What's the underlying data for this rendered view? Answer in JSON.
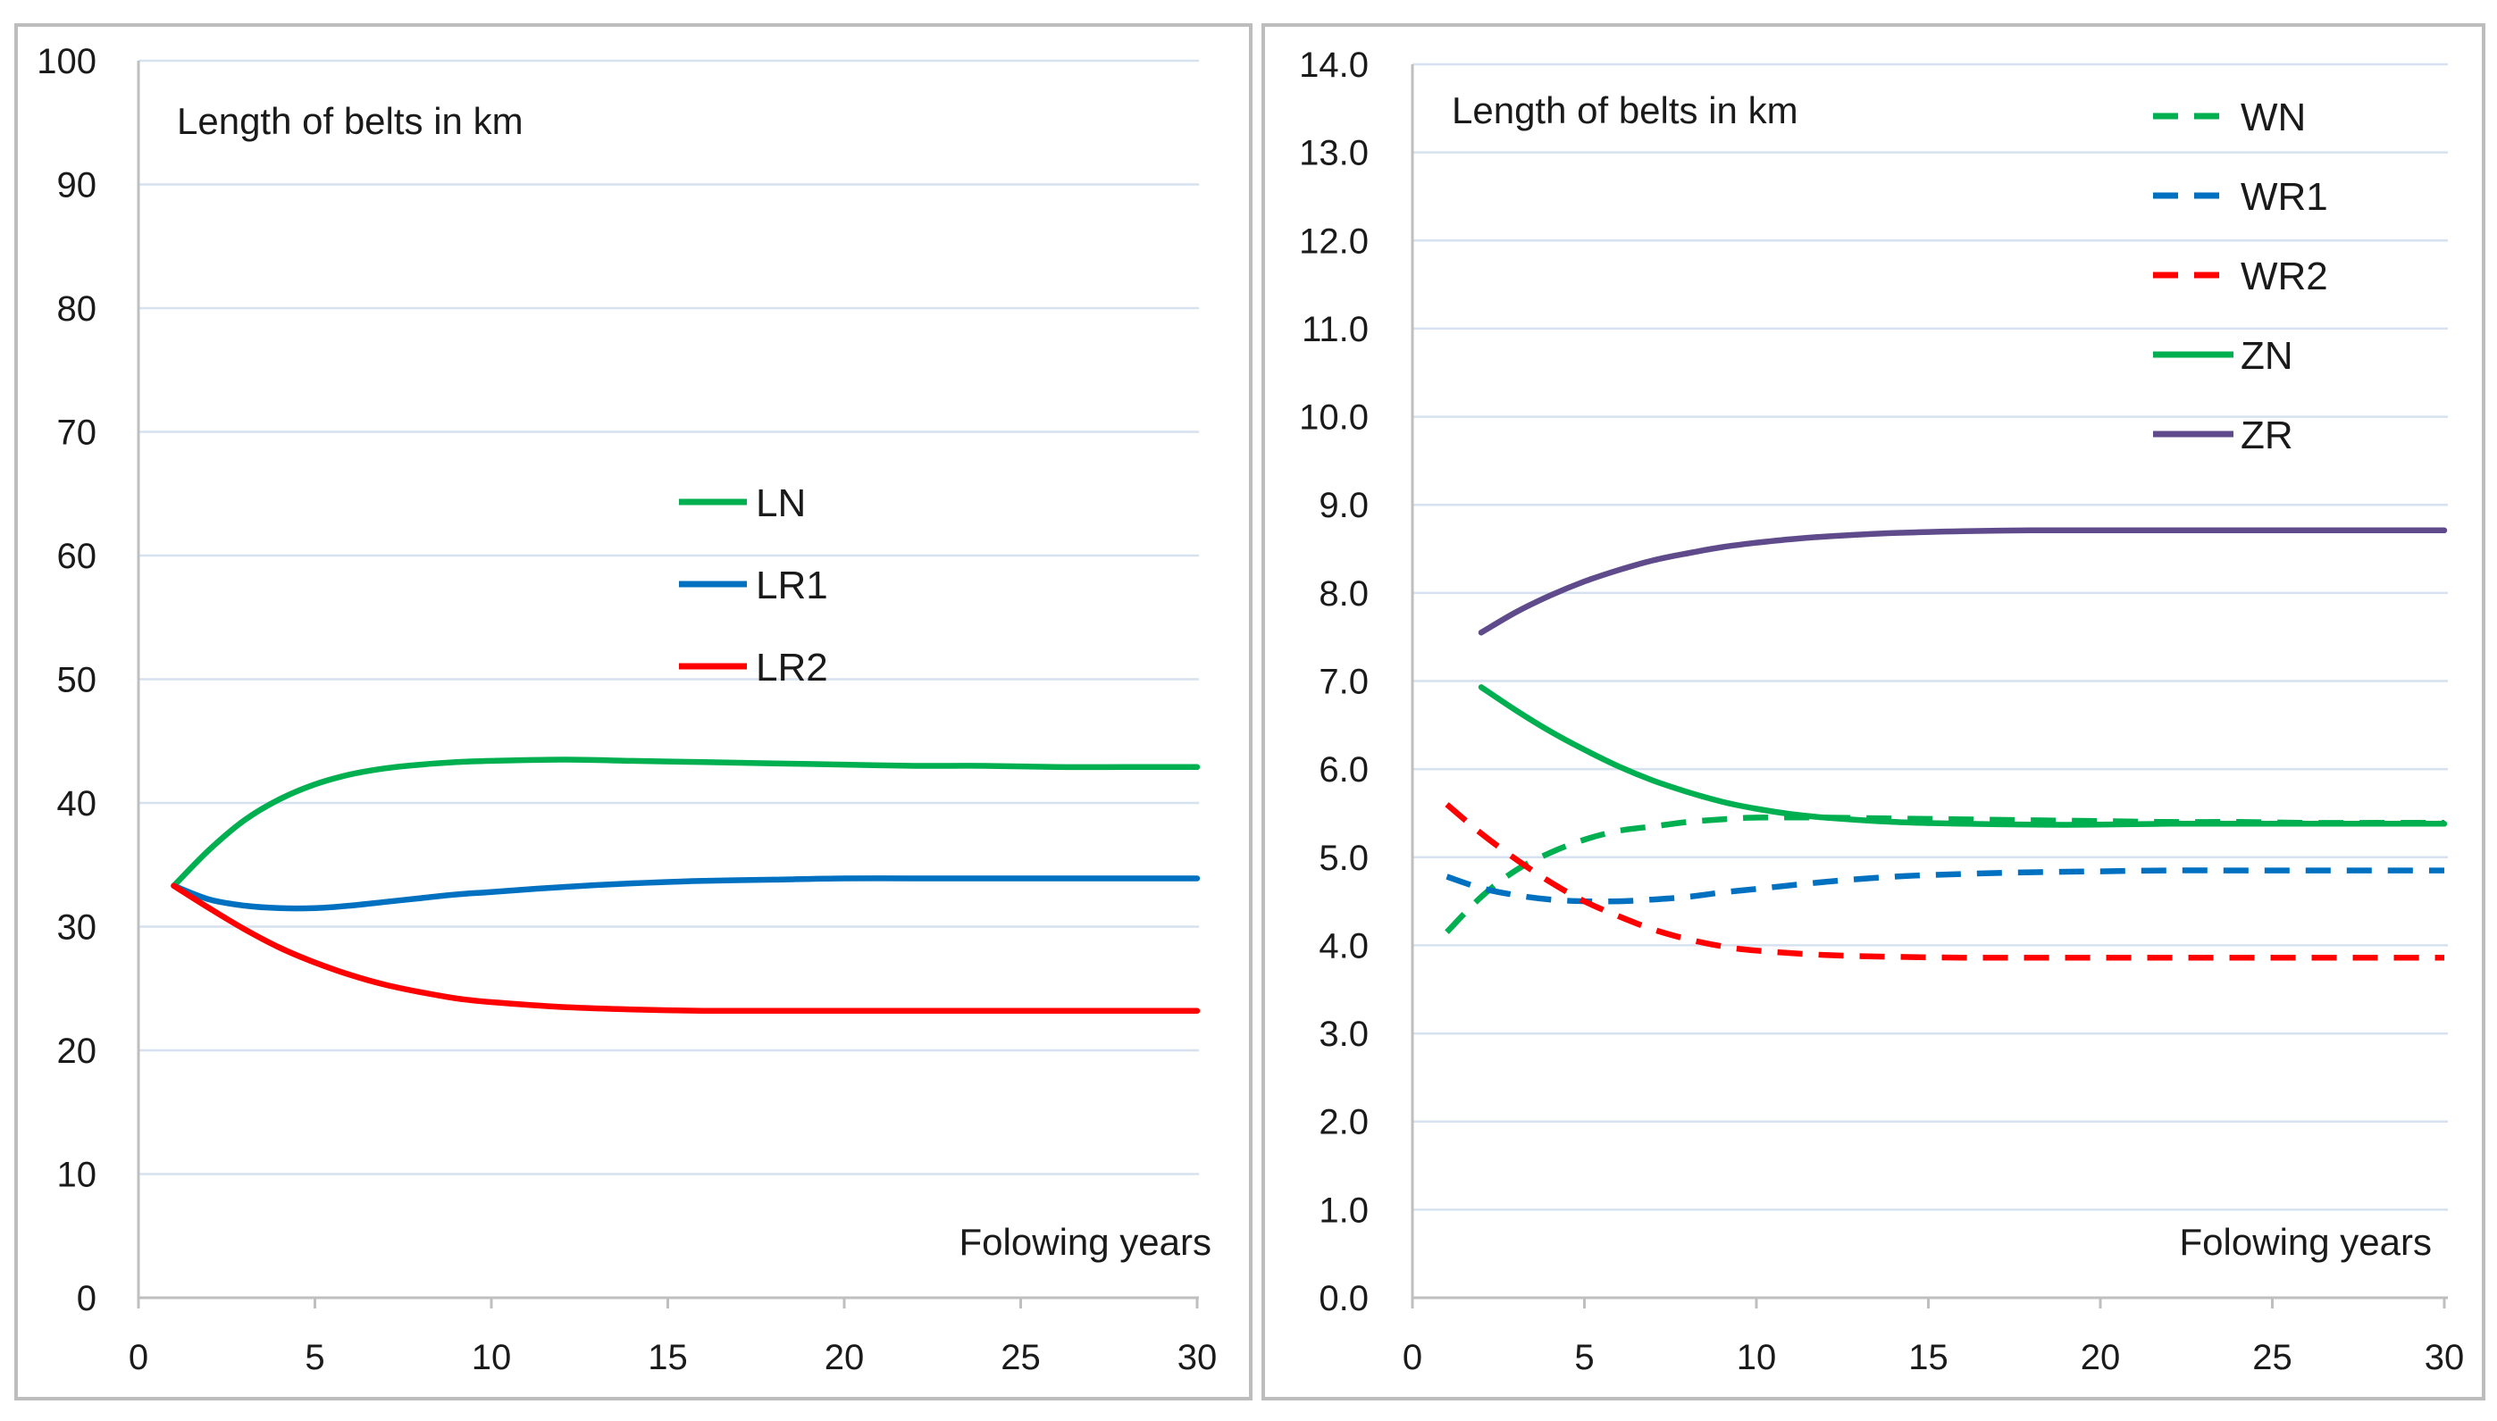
{
  "chart_data": [
    {
      "type": "line",
      "title": "Length of belts in km",
      "xlabel": "Folowing years",
      "ylabel": "",
      "xlim": [
        0,
        30
      ],
      "ylim": [
        0,
        100
      ],
      "x_ticks": [
        0,
        5,
        10,
        15,
        20,
        25,
        30
      ],
      "y_ticks": [
        0,
        10,
        20,
        30,
        40,
        50,
        60,
        70,
        80,
        90,
        100
      ],
      "y_tick_labels": [
        "0",
        "10",
        "20",
        "30",
        "40",
        "50",
        "60",
        "70",
        "80",
        "90",
        "100"
      ],
      "grid": true,
      "legend_position": "center",
      "x": [
        1,
        2,
        3,
        4,
        5,
        6,
        7,
        8,
        9,
        10,
        12,
        14,
        16,
        18,
        20,
        22,
        24,
        26,
        28,
        30
      ],
      "series": [
        {
          "name": "LN",
          "color": "#00b050",
          "dash": false,
          "values": [
            33.3,
            36.2,
            38.6,
            40.3,
            41.5,
            42.3,
            42.8,
            43.1,
            43.3,
            43.4,
            43.5,
            43.4,
            43.3,
            43.2,
            43.1,
            43.0,
            43.0,
            42.9,
            42.9,
            42.9
          ]
        },
        {
          "name": "LR1",
          "color": "#0070c0",
          "dash": false,
          "values": [
            33.3,
            32.2,
            31.7,
            31.5,
            31.5,
            31.7,
            32.0,
            32.3,
            32.6,
            32.8,
            33.2,
            33.5,
            33.7,
            33.8,
            33.9,
            33.9,
            33.9,
            33.9,
            33.9,
            33.9
          ]
        },
        {
          "name": "LR2",
          "color": "#ff0000",
          "dash": false,
          "values": [
            33.3,
            31.5,
            29.8,
            28.3,
            27.1,
            26.1,
            25.3,
            24.7,
            24.2,
            23.9,
            23.5,
            23.3,
            23.2,
            23.2,
            23.2,
            23.2,
            23.2,
            23.2,
            23.2,
            23.2
          ]
        }
      ]
    },
    {
      "type": "line",
      "title": "Length of belts in km",
      "xlabel": "Folowing years",
      "ylabel": "",
      "xlim": [
        0,
        30
      ],
      "ylim": [
        0,
        14
      ],
      "x_ticks": [
        0,
        5,
        10,
        15,
        20,
        25,
        30
      ],
      "y_ticks": [
        0,
        1,
        2,
        3,
        4,
        5,
        6,
        7,
        8,
        9,
        10,
        11,
        12,
        13,
        14
      ],
      "y_tick_labels": [
        "0.0",
        "1.0",
        "2.0",
        "3.0",
        "4.0",
        "5.0",
        "6.0",
        "7.0",
        "8.0",
        "9.0",
        "10.0",
        "11.0",
        "12.0",
        "13.0",
        "14.0"
      ],
      "grid": true,
      "legend_position": "top-right",
      "series": [
        {
          "name": "WN",
          "color": "#00b050",
          "dash": true,
          "x": [
            1,
            2,
            3,
            4,
            5,
            6,
            7,
            8,
            9,
            10,
            12,
            14,
            16,
            18,
            20,
            22,
            24,
            26,
            28,
            30
          ],
          "values": [
            4.15,
            4.55,
            4.85,
            5.05,
            5.2,
            5.3,
            5.35,
            5.4,
            5.43,
            5.45,
            5.45,
            5.44,
            5.43,
            5.42,
            5.41,
            5.4,
            5.4,
            5.39,
            5.39,
            5.39
          ]
        },
        {
          "name": "WR1",
          "color": "#0070c0",
          "dash": true,
          "x": [
            1,
            2,
            3,
            4,
            5,
            6,
            7,
            8,
            9,
            10,
            12,
            14,
            16,
            18,
            20,
            22,
            24,
            26,
            28,
            30
          ],
          "values": [
            4.78,
            4.65,
            4.57,
            4.52,
            4.5,
            4.5,
            4.52,
            4.55,
            4.6,
            4.64,
            4.72,
            4.78,
            4.81,
            4.83,
            4.84,
            4.85,
            4.85,
            4.85,
            4.85,
            4.85
          ]
        },
        {
          "name": "WR2",
          "color": "#ff0000",
          "dash": true,
          "x": [
            1,
            2,
            3,
            4,
            5,
            6,
            7,
            8,
            9,
            10,
            12,
            14,
            16,
            18,
            20,
            22,
            24,
            26,
            28,
            30
          ],
          "values": [
            5.6,
            5.27,
            4.98,
            4.72,
            4.5,
            4.33,
            4.18,
            4.07,
            3.99,
            3.94,
            3.89,
            3.87,
            3.86,
            3.86,
            3.86,
            3.86,
            3.86,
            3.86,
            3.86,
            3.86
          ]
        },
        {
          "name": "ZN",
          "color": "#00b050",
          "dash": false,
          "x": [
            2,
            3,
            4,
            5,
            6,
            7,
            8,
            9,
            10,
            11,
            12,
            14,
            16,
            18,
            20,
            22,
            24,
            26,
            28,
            30
          ],
          "values": [
            6.93,
            6.67,
            6.43,
            6.22,
            6.03,
            5.87,
            5.74,
            5.63,
            5.55,
            5.49,
            5.45,
            5.4,
            5.38,
            5.37,
            5.37,
            5.38,
            5.38,
            5.38,
            5.38,
            5.38
          ]
        },
        {
          "name": "ZR",
          "color": "#5f4b8b",
          "dash": false,
          "x": [
            2,
            3,
            4,
            5,
            6,
            7,
            8,
            9,
            10,
            11,
            12,
            14,
            16,
            18,
            20,
            22,
            24,
            26,
            28,
            30
          ],
          "values": [
            7.55,
            7.78,
            7.97,
            8.13,
            8.26,
            8.37,
            8.45,
            8.52,
            8.57,
            8.61,
            8.64,
            8.68,
            8.7,
            8.71,
            8.71,
            8.71,
            8.71,
            8.71,
            8.71,
            8.71
          ]
        }
      ]
    }
  ]
}
